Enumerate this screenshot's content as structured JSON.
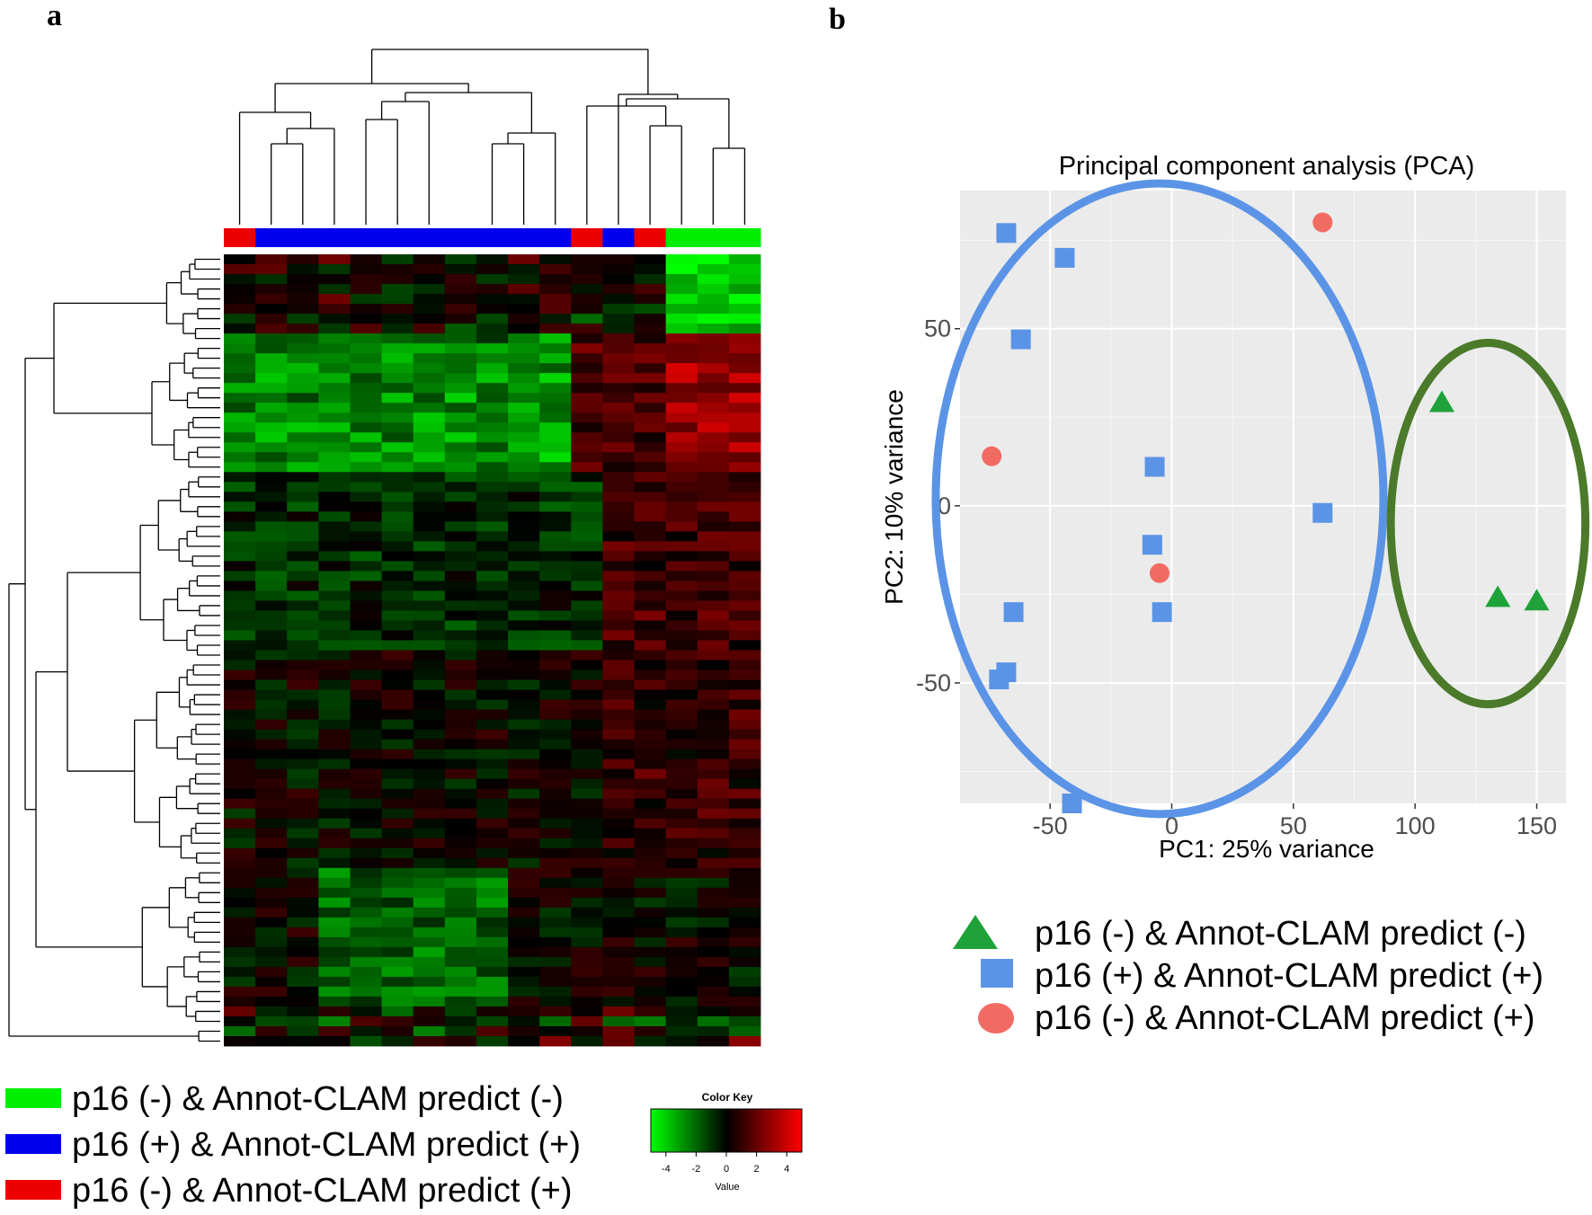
{
  "panels": {
    "a": "a",
    "b": "b"
  },
  "colors": {
    "neg_neg": "#00ee00",
    "pos_pos": "#0000ee",
    "neg_pos": "#ee0000",
    "pca_triangle": "#1fa23a",
    "pca_square": "#5b94e6",
    "pca_circle": "#f26b63",
    "ellipse_blue": "#5b94e6",
    "ellipse_green": "#4a7a2a",
    "plot_bg": "#ebebeb"
  },
  "heatmap": {
    "n_rows": 80,
    "groups": [
      "neg_pos",
      "pos_pos",
      "pos_pos",
      "pos_pos",
      "pos_pos",
      "pos_pos",
      "pos_pos",
      "pos_pos",
      "pos_pos",
      "pos_pos",
      "pos_pos",
      "neg_pos",
      "pos_pos",
      "neg_pos",
      "neg_neg",
      "neg_neg",
      "neg_neg"
    ],
    "legend": [
      {
        "group": "neg_neg",
        "label": "p16 (-) & Annot-CLAM predict (-)"
      },
      {
        "group": "pos_pos",
        "label": "p16 (+) & Annot-CLAM predict (+)"
      },
      {
        "group": "neg_pos",
        "label": "p16 (-) & Annot-CLAM predict (+)"
      }
    ],
    "color_key": {
      "title": "Color Key",
      "xlabel": "Value",
      "range": [
        -5,
        5
      ],
      "ticks": [
        -4,
        -2,
        0,
        2,
        4
      ],
      "tick_labels": [
        "-4",
        "-2",
        "0",
        "2",
        "4"
      ]
    }
  },
  "chart_data": [
    {
      "type": "heatmap",
      "description": "Hierarchically clustered expression heatmap, 17 samples x 80 genes, red-black-green scale",
      "column_groups": [
        "p16 (-) & Annot-CLAM predict (+)",
        "p16 (+) & Annot-CLAM predict (+)",
        "p16 (+) & Annot-CLAM predict (+)",
        "p16 (+) & Annot-CLAM predict (+)",
        "p16 (+) & Annot-CLAM predict (+)",
        "p16 (+) & Annot-CLAM predict (+)",
        "p16 (+) & Annot-CLAM predict (+)",
        "p16 (+) & Annot-CLAM predict (+)",
        "p16 (+) & Annot-CLAM predict (+)",
        "p16 (+) & Annot-CLAM predict (+)",
        "p16 (+) & Annot-CLAM predict (+)",
        "p16 (-) & Annot-CLAM predict (+)",
        "p16 (+) & Annot-CLAM predict (+)",
        "p16 (-) & Annot-CLAM predict (+)",
        "p16 (-) & Annot-CLAM predict (-)",
        "p16 (-) & Annot-CLAM predict (-)",
        "p16 (-) & Annot-CLAM predict (-)"
      ],
      "value_range": [
        -5,
        5
      ]
    },
    {
      "type": "scatter",
      "title": "Principal component analysis (PCA)",
      "xlabel": "PC1: 25% variance",
      "ylabel": "PC2: 10% variance",
      "xlim": [
        -87,
        162
      ],
      "ylim": [
        -84,
        89
      ],
      "xticks": [
        -50,
        0,
        50,
        100,
        150
      ],
      "yticks": [
        -50,
        0,
        50
      ],
      "xtick_labels": [
        "-50",
        "0",
        "50",
        "100",
        "150"
      ],
      "ytick_labels": [
        "-50",
        "0",
        "50"
      ],
      "series": [
        {
          "name": "p16 (-) & Annot-CLAM predict (-)",
          "marker": "triangle",
          "points": [
            [
              111,
              29
            ],
            [
              134,
              -26
            ],
            [
              150,
              -27
            ]
          ]
        },
        {
          "name": "p16 (+) & Annot-CLAM predict (+)",
          "marker": "square",
          "points": [
            [
              -68,
              77
            ],
            [
              -44,
              70
            ],
            [
              -62,
              47
            ],
            [
              -7,
              11
            ],
            [
              62,
              -2
            ],
            [
              -8,
              -11
            ],
            [
              -4,
              -30
            ],
            [
              -65,
              -30
            ],
            [
              -68,
              -47
            ],
            [
              -71,
              -49
            ],
            [
              -41,
              -84
            ]
          ]
        },
        {
          "name": "p16 (-) & Annot-CLAM predict (+)",
          "marker": "circle",
          "points": [
            [
              62,
              80
            ],
            [
              -74,
              14
            ],
            [
              -5,
              -19
            ]
          ]
        }
      ],
      "ellipses": [
        {
          "group": "p16 (+) & Annot-CLAM predict (+)",
          "center": [
            -5,
            2
          ],
          "radii": [
            92,
            89
          ]
        },
        {
          "group": "p16 (-) & Annot-CLAM predict (-)",
          "center": [
            130,
            -5
          ],
          "radii": [
            40,
            51
          ]
        }
      ],
      "legend": [
        "p16 (-) & Annot-CLAM predict (-)",
        "p16 (+) & Annot-CLAM predict (+)",
        "p16 (-) & Annot-CLAM predict (+)"
      ],
      "legend_position": "bottom"
    }
  ]
}
